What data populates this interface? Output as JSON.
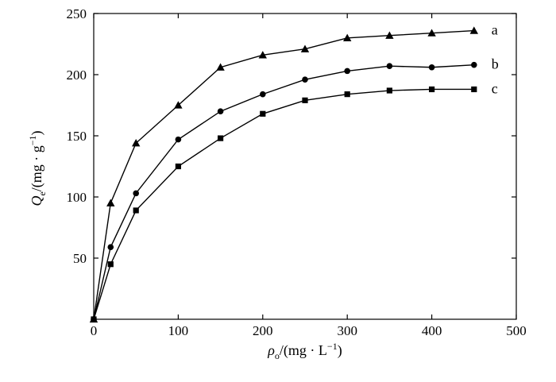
{
  "chart_data": {
    "type": "line",
    "title": "",
    "xlabel": {
      "main": "ρ",
      "sub": "o",
      "unit": "/(mg · L",
      "sup": "−1",
      "close": ")"
    },
    "ylabel": {
      "main": "Q",
      "sub": "e",
      "unit": "/(mg · g",
      "sup": "−1",
      "close": ")"
    },
    "xlim": [
      0,
      500
    ],
    "ylim": [
      0,
      250
    ],
    "xticks": [
      0,
      100,
      200,
      300,
      400,
      500
    ],
    "yticks": [
      50,
      100,
      150,
      200,
      250
    ],
    "grid": false,
    "series": [
      {
        "name": "a",
        "marker": "triangle",
        "x": [
          0,
          20,
          50,
          100,
          150,
          200,
          250,
          300,
          350,
          400,
          450
        ],
        "y": [
          0,
          95,
          144,
          175,
          206,
          216,
          221,
          230,
          232,
          234,
          236
        ]
      },
      {
        "name": "b",
        "marker": "circle",
        "x": [
          0,
          20,
          50,
          100,
          150,
          200,
          250,
          300,
          350,
          400,
          450
        ],
        "y": [
          0,
          59,
          103,
          147,
          170,
          184,
          196,
          203,
          207,
          206,
          208
        ]
      },
      {
        "name": "c",
        "marker": "square",
        "x": [
          0,
          20,
          50,
          100,
          150,
          200,
          250,
          300,
          350,
          400,
          450
        ],
        "y": [
          0,
          45,
          89,
          125,
          148,
          168,
          179,
          184,
          187,
          188,
          188
        ]
      }
    ]
  }
}
